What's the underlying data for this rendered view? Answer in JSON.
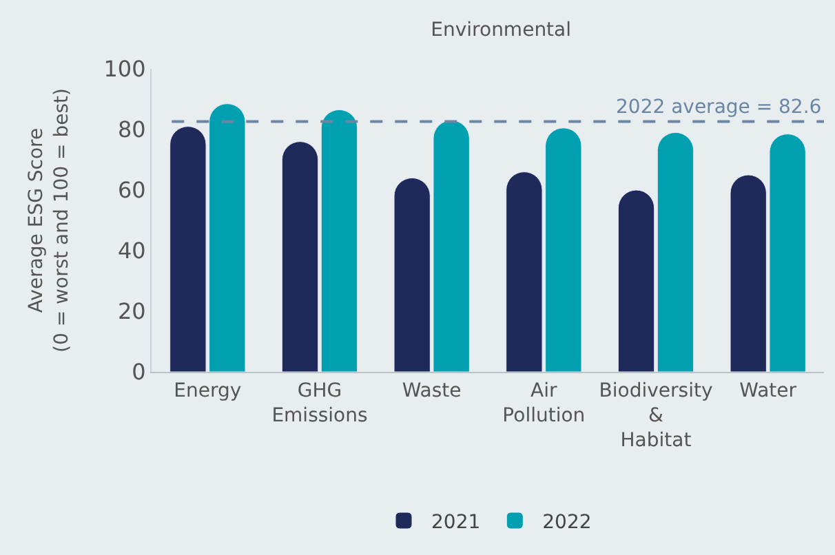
{
  "chart_data": {
    "type": "bar",
    "title": "Environmental",
    "ylabel": "Average ESG Score\n(0 = worst and 100 = best)",
    "categories": [
      "Energy",
      "GHG\nEmissions",
      "Waste",
      "Air\nPollution",
      "Biodiversity\n&\nHabitat",
      "Water"
    ],
    "series": [
      {
        "name": "2021",
        "color": "#1f2a5a",
        "values": [
          81,
          76,
          64,
          66,
          60,
          65
        ]
      },
      {
        "name": "2022",
        "color": "#00a0b0",
        "values": [
          88.5,
          86.5,
          83,
          80.5,
          79,
          78.5
        ]
      }
    ],
    "ylim": [
      0,
      100
    ],
    "yticks": [
      0,
      20,
      40,
      60,
      80,
      100
    ],
    "grid": false,
    "legend": "bottom",
    "ref_lines": [
      {
        "axis": "y",
        "value": 82.6,
        "label": "2022 average = 82.6",
        "color": "#6b86a3",
        "line_style": "dashed"
      }
    ]
  }
}
